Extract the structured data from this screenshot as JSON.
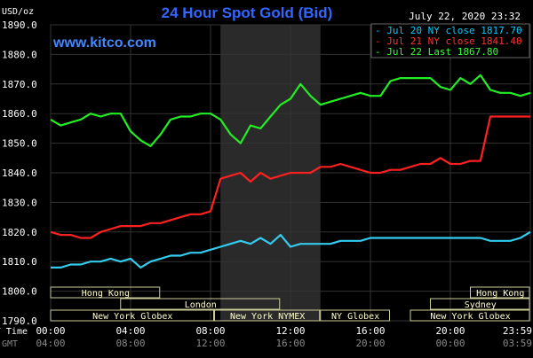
{
  "chart_data": {
    "type": "line",
    "title": "24 Hour Spot Gold (Bid)",
    "timestamp": "July 22, 2020 23:32",
    "watermark": "www.kitco.com",
    "y_unit_label": "USD/oz",
    "ylim": [
      1790,
      1890
    ],
    "y_ticks": [
      "1890.0",
      "1880.0",
      "1870.0",
      "1860.0",
      "1850.0",
      "1840.0",
      "1830.0",
      "1820.0",
      "1810.0",
      "1800.0",
      "1790.0"
    ],
    "x_tick_hours": [
      0,
      4,
      8,
      12,
      16,
      20,
      24
    ],
    "x_ticks_ny": [
      "00:00",
      "04:00",
      "08:00",
      "12:00",
      "16:00",
      "20:00",
      "23:59"
    ],
    "x_ticks_gmt": [
      "04:00",
      "08:00",
      "12:00",
      "16:00",
      "20:00",
      "00:00",
      "03:59"
    ],
    "row_label_ny": "NY Time",
    "row_label_gmt": "GMT",
    "shaded_hours": [
      8.5,
      13.5
    ],
    "sessions": [
      {
        "label": "Hong Kong",
        "start": 0,
        "end": 5.5,
        "row": 0
      },
      {
        "label": "Hong Kong",
        "start": 21,
        "end": 24,
        "row": 0
      },
      {
        "label": "London",
        "start": 3.5,
        "end": 11.5,
        "row": 1
      },
      {
        "label": "Sydney",
        "start": 19,
        "end": 24,
        "row": 1
      },
      {
        "label": "New York Globex",
        "start": 0,
        "end": 8.2,
        "row": 2
      },
      {
        "label": "New York NYMEX",
        "start": 8.2,
        "end": 13.5,
        "row": 2
      },
      {
        "label": "NY Globex",
        "start": 13.5,
        "end": 17,
        "row": 2
      },
      {
        "label": "New York Globex",
        "start": 18,
        "end": 24,
        "row": 2
      }
    ],
    "legend": [
      {
        "label": "- Jul 20 NY close 1817.70",
        "color": "#00ccff"
      },
      {
        "label": "- Jul 21 NY close 1841.40",
        "color": "#ff3030"
      },
      {
        "label": "- Jul 22 Last 1867.80",
        "color": "#33ff33"
      }
    ],
    "series": [
      {
        "name": "Jul 20",
        "color": "#33ccee",
        "x": [
          0,
          0.5,
          1,
          1.5,
          2,
          2.5,
          3,
          3.5,
          4,
          4.5,
          5,
          5.5,
          6,
          6.5,
          7,
          7.5,
          8,
          8.5,
          9,
          9.5,
          10,
          10.5,
          11,
          11.5,
          12,
          12.5,
          13,
          13.5,
          14,
          14.5,
          15,
          15.5,
          16,
          16.5,
          17,
          17.5,
          18,
          18.5,
          19,
          19.5,
          20,
          20.5,
          21,
          21.5,
          22,
          22.5,
          23,
          23.5,
          24
        ],
        "y": [
          1808,
          1808,
          1809,
          1809,
          1810,
          1810,
          1811,
          1810,
          1811,
          1808,
          1810,
          1811,
          1812,
          1812,
          1813,
          1813,
          1814,
          1815,
          1816,
          1817,
          1816,
          1818,
          1816,
          1819,
          1815,
          1816,
          1816,
          1816,
          1816,
          1817,
          1817,
          1817,
          1818,
          1818,
          1818,
          1818,
          1818,
          1818,
          1818,
          1818,
          1818,
          1818,
          1818,
          1818,
          1817,
          1817,
          1817,
          1818,
          1820
        ]
      },
      {
        "name": "Jul 21",
        "color": "#ff2020",
        "x": [
          0,
          0.5,
          1,
          1.5,
          2,
          2.5,
          3,
          3.5,
          4,
          4.5,
          5,
          5.5,
          6,
          6.5,
          7,
          7.5,
          8,
          8.5,
          9,
          9.5,
          10,
          10.5,
          11,
          11.5,
          12,
          12.5,
          13,
          13.5,
          14,
          14.5,
          15,
          15.5,
          16,
          16.5,
          17,
          17.5,
          18,
          18.5,
          19,
          19.5,
          20,
          20.5,
          21,
          21.5,
          22,
          22.5,
          23,
          23.5,
          24
        ],
        "y": [
          1820,
          1819,
          1819,
          1818,
          1818,
          1820,
          1821,
          1822,
          1822,
          1822,
          1823,
          1823,
          1824,
          1825,
          1826,
          1826,
          1827,
          1838,
          1839,
          1840,
          1837,
          1840,
          1838,
          1839,
          1840,
          1840,
          1840,
          1842,
          1842,
          1843,
          1842,
          1841,
          1840,
          1840,
          1841,
          1841,
          1842,
          1843,
          1843,
          1845,
          1843,
          1843,
          1844,
          1844,
          1859,
          1859,
          1859,
          1859,
          1859
        ]
      },
      {
        "name": "Jul 22",
        "color": "#22ee22",
        "x": [
          0,
          0.5,
          1,
          1.5,
          2,
          2.5,
          3,
          3.5,
          4,
          4.5,
          5,
          5.5,
          6,
          6.5,
          7,
          7.5,
          8,
          8.5,
          9,
          9.5,
          10,
          10.5,
          11,
          11.5,
          12,
          12.5,
          13,
          13.5,
          14,
          14.5,
          15,
          15.5,
          16,
          16.5,
          17,
          17.5,
          18,
          18.5,
          19,
          19.5,
          20,
          20.5,
          21,
          21.5,
          22,
          22.5,
          23,
          23.5,
          24
        ],
        "y": [
          1858,
          1856,
          1857,
          1858,
          1860,
          1859,
          1860,
          1860,
          1854,
          1851,
          1849,
          1853,
          1858,
          1859,
          1859,
          1860,
          1860,
          1858,
          1853,
          1850,
          1856,
          1855,
          1859,
          1863,
          1865,
          1870,
          1866,
          1863,
          1864,
          1865,
          1866,
          1867,
          1866,
          1866,
          1871,
          1872,
          1872,
          1872,
          1872,
          1869,
          1868,
          1872,
          1870,
          1873,
          1868,
          1867,
          1867,
          1866,
          1867
        ]
      }
    ]
  }
}
